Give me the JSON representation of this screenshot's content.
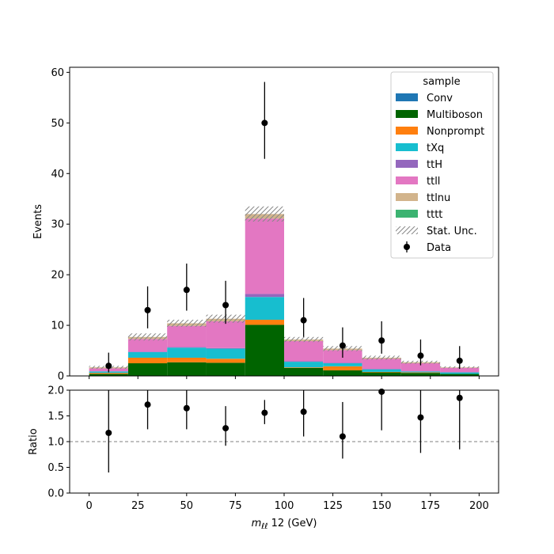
{
  "chart_data": {
    "type": "bar",
    "stacked": true,
    "histogram": true,
    "bin_edges": [
      0,
      20,
      40,
      60,
      80,
      100,
      120,
      140,
      160,
      180,
      200
    ],
    "bin_centers": [
      10,
      30,
      50,
      70,
      90,
      110,
      130,
      150,
      170,
      190
    ],
    "xlabel_math": "m",
    "xlabel_sub": "ℓℓ",
    "xlabel_suffix": " 12 (GeV)",
    "xlim": [
      -10,
      210
    ],
    "x_ticks": [
      0,
      25,
      50,
      75,
      100,
      125,
      150,
      175,
      200
    ],
    "main_panel": {
      "ylabel": "Events",
      "ylim": [
        0,
        61
      ],
      "y_ticks": [
        0,
        10,
        20,
        30,
        40,
        50,
        60
      ],
      "series": [
        {
          "name": "Multiboson",
          "color": "#006400",
          "values": [
            0.4,
            2.5,
            2.7,
            2.6,
            10.1,
            1.6,
            1.1,
            0.7,
            0.6,
            0.4
          ]
        },
        {
          "name": "Nonprompt",
          "color": "#ff7f0e",
          "values": [
            0.2,
            1.1,
            0.9,
            0.8,
            1.0,
            0.1,
            0.8,
            0.1,
            0.1,
            0.0
          ]
        },
        {
          "name": "tXq",
          "color": "#17becf",
          "values": [
            0.3,
            1.1,
            2.0,
            2.0,
            4.5,
            1.1,
            0.6,
            0.5,
            0.2,
            0.3
          ]
        },
        {
          "name": "ttH",
          "color": "#9467bd",
          "values": [
            0.0,
            0.1,
            0.1,
            0.1,
            0.6,
            0.1,
            0.1,
            0.1,
            0.0,
            0.0
          ]
        },
        {
          "name": "ttll",
          "color": "#e377c2",
          "values": [
            0.6,
            2.5,
            4.2,
            5.3,
            14.9,
            4.0,
            2.5,
            2.0,
            1.6,
            0.9
          ]
        },
        {
          "name": "ttlnu",
          "color": "#d2b48c",
          "values": [
            0.2,
            0.4,
            0.5,
            0.5,
            0.9,
            0.3,
            0.3,
            0.2,
            0.2,
            0.1
          ]
        },
        {
          "name": "tttt",
          "color": "#3cb371",
          "values": [
            0.0,
            0.0,
            0.0,
            0.0,
            0.0,
            0.0,
            0.0,
            0.0,
            0.0,
            0.0
          ]
        },
        {
          "name": "Conv",
          "color": "#1f77b4",
          "values": [
            0.0,
            0.0,
            0.0,
            0.0,
            0.0,
            0.0,
            0.0,
            0.0,
            0.0,
            0.0
          ]
        }
      ],
      "stat_unc": [
        0.3,
        0.7,
        0.7,
        0.8,
        1.5,
        0.5,
        0.5,
        0.4,
        0.3,
        0.2
      ],
      "data": {
        "name": "Data",
        "values": [
          2,
          13,
          17,
          14,
          50,
          11,
          6,
          7,
          4,
          3
        ],
        "err_low": [
          1.3,
          3.6,
          4.1,
          3.7,
          7.1,
          3.3,
          2.4,
          2.6,
          1.9,
          1.6
        ],
        "err_high": [
          2.6,
          4.7,
          5.2,
          4.8,
          8.1,
          4.4,
          3.6,
          3.8,
          3.2,
          2.9
        ]
      }
    },
    "ratio_panel": {
      "ylabel": "Ratio",
      "ylim": [
        0,
        2
      ],
      "y_ticks": [
        "0.0",
        "0.5",
        "1.0",
        "1.5",
        "2.0"
      ],
      "reference_line": 1.0,
      "values": [
        1.17,
        1.72,
        1.65,
        1.26,
        1.56,
        1.58,
        1.1,
        1.97,
        1.47,
        1.85
      ],
      "err_low": [
        0.77,
        0.48,
        0.41,
        0.34,
        0.22,
        0.48,
        0.43,
        0.75,
        0.69,
        1.0
      ],
      "err_high": [
        1.0,
        0.62,
        0.52,
        0.43,
        0.25,
        0.63,
        0.67,
        1.1,
        1.1,
        1.2
      ]
    },
    "legend": {
      "title": "sample",
      "placement": "upper-right",
      "entries": [
        {
          "label": "Conv",
          "color": "#1f77b4",
          "kind": "patch"
        },
        {
          "label": "Multiboson",
          "color": "#006400",
          "kind": "patch"
        },
        {
          "label": "Nonprompt",
          "color": "#ff7f0e",
          "kind": "patch"
        },
        {
          "label": "tXq",
          "color": "#17becf",
          "kind": "patch"
        },
        {
          "label": "ttH",
          "color": "#9467bd",
          "kind": "patch"
        },
        {
          "label": "ttll",
          "color": "#e377c2",
          "kind": "patch"
        },
        {
          "label": "ttlnu",
          "color": "#d2b48c",
          "kind": "patch"
        },
        {
          "label": "tttt",
          "color": "#3cb371",
          "kind": "patch"
        },
        {
          "label": "Stat. Unc.",
          "color": "#888888",
          "kind": "hatch"
        },
        {
          "label": "Data",
          "color": "#000000",
          "kind": "marker"
        }
      ]
    }
  }
}
